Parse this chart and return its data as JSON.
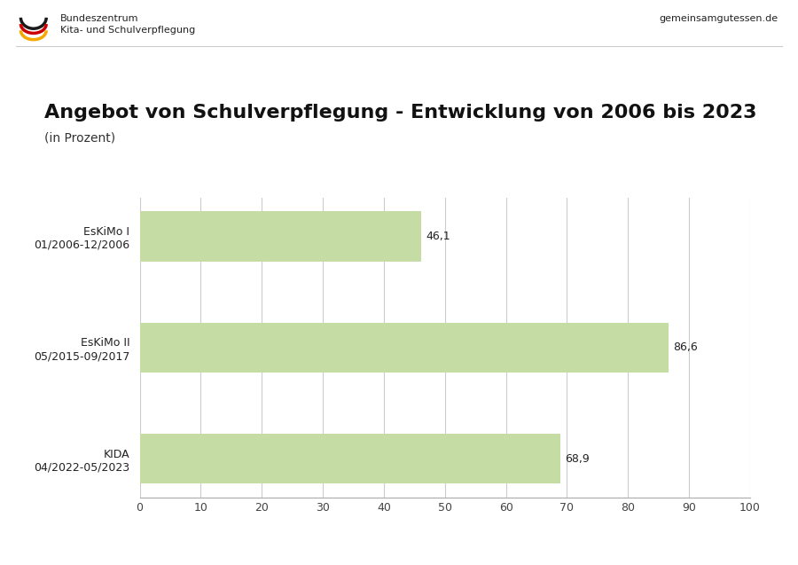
{
  "title": "Angebot von Schulverpflegung - Entwicklung von 2006 bis 2023",
  "subtitle": "(in Prozent)",
  "categories": [
    "EsKiMo I\n01/2006-12/2006",
    "EsKiMo II\n05/2015-09/2017",
    "KIDA\n04/2022-05/2023"
  ],
  "values": [
    46.1,
    86.6,
    68.9
  ],
  "bar_color": "#c5dda4",
  "bar_edgecolor": "#c5dda4",
  "value_labels": [
    "46,1",
    "86,6",
    "68,9"
  ],
  "xlim": [
    0,
    100
  ],
  "xticks": [
    0,
    10,
    20,
    30,
    40,
    50,
    60,
    70,
    80,
    90,
    100
  ],
  "grid_color": "#cccccc",
  "background_color": "#ffffff",
  "title_fontsize": 16,
  "subtitle_fontsize": 10,
  "tick_fontsize": 9,
  "label_fontsize": 9,
  "value_fontsize": 9,
  "header_fontsize": 8,
  "header_text_left": "Bundeszentrum\nKita- und Schulverpflegung",
  "header_text_right": "gemeinsamgutessen.de",
  "bar_height": 0.45
}
